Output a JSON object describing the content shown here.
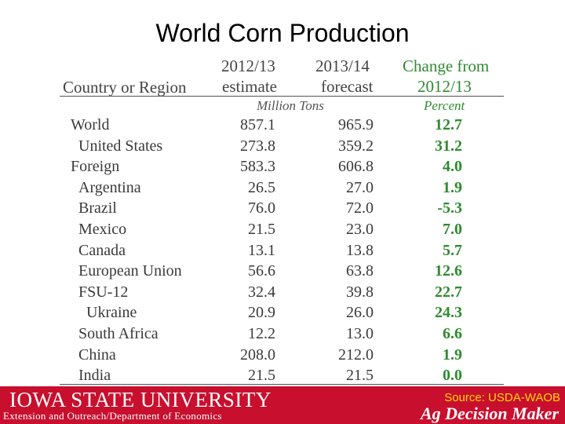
{
  "title": "World Corn Production",
  "table": {
    "headers": {
      "region": "Country or Region",
      "col1_line1": "2012/13",
      "col1_line2": "estimate",
      "col2_line1": "2013/14",
      "col2_line2": "forecast",
      "col3_line1": "Change from",
      "col3_line2": "2012/13"
    },
    "units": {
      "tons": "Million Tons",
      "percent": "Percent"
    },
    "rows": [
      {
        "name": "World",
        "indent": 0,
        "est": "857.1",
        "fcst": "965.9",
        "change": "12.7"
      },
      {
        "name": "United States",
        "indent": 1,
        "est": "273.8",
        "fcst": "359.2",
        "change": "31.2"
      },
      {
        "name": "Foreign",
        "indent": 0,
        "est": "583.3",
        "fcst": "606.8",
        "change": "4.0"
      },
      {
        "name": "Argentina",
        "indent": 1,
        "est": "26.5",
        "fcst": "27.0",
        "change": "1.9"
      },
      {
        "name": "Brazil",
        "indent": 1,
        "est": "76.0",
        "fcst": "72.0",
        "change": "-5.3"
      },
      {
        "name": "Mexico",
        "indent": 1,
        "est": "21.5",
        "fcst": "23.0",
        "change": "7.0"
      },
      {
        "name": "Canada",
        "indent": 1,
        "est": "13.1",
        "fcst": "13.8",
        "change": "5.7"
      },
      {
        "name": "European Union",
        "indent": 1,
        "est": "56.6",
        "fcst": "63.8",
        "change": "12.6"
      },
      {
        "name": "FSU-12",
        "indent": 1,
        "est": "32.4",
        "fcst": "39.8",
        "change": "22.7"
      },
      {
        "name": "Ukraine",
        "indent": 2,
        "est": "20.9",
        "fcst": "26.0",
        "change": "24.3"
      },
      {
        "name": "South Africa",
        "indent": 1,
        "est": "12.2",
        "fcst": "13.0",
        "change": "6.6"
      },
      {
        "name": "China",
        "indent": 1,
        "est": "208.0",
        "fcst": "212.0",
        "change": "1.9"
      },
      {
        "name": "India",
        "indent": 1,
        "est": "21.5",
        "fcst": "21.5",
        "change": "0.0"
      }
    ]
  },
  "footer": {
    "brand": "IOWA STATE UNIVERSITY",
    "sub": "Extension and Outreach/Department of Economics",
    "source": "Source: USDA-WAOB",
    "product": "Ag Decision Maker"
  },
  "colors": {
    "accent_green": "#2e8b2e",
    "footer_red": "#c8102e",
    "source_yellow": "#ffd700"
  }
}
